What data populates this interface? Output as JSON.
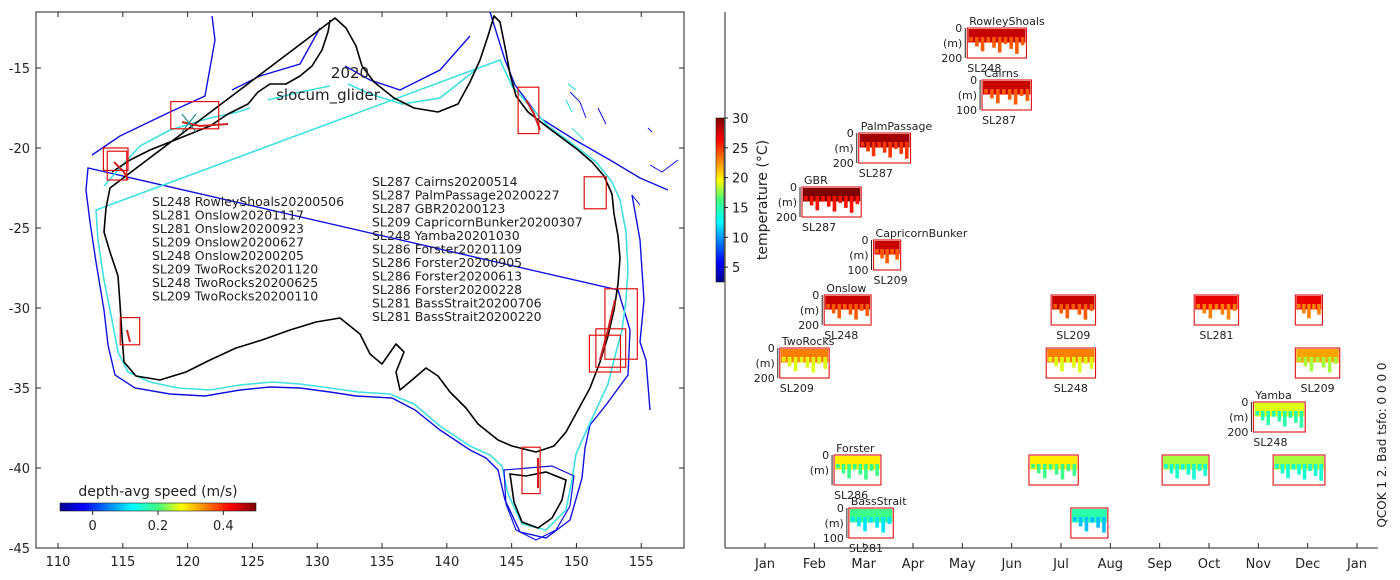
{
  "map": {
    "title_year": "2020",
    "title_platform": "slocum_glider",
    "xticks": [
      "110",
      "115",
      "120",
      "125",
      "130",
      "135",
      "140",
      "145",
      "150",
      "155"
    ],
    "xtick_values": [
      110,
      115,
      120,
      125,
      130,
      135,
      140,
      145,
      150,
      155
    ],
    "yticks": [
      "-15",
      "-20",
      "-25",
      "-30",
      "-35",
      "-40",
      "-45"
    ],
    "ytick_values": [
      -15,
      -20,
      -25,
      -30,
      -35,
      -40,
      -45
    ],
    "xlim": [
      108.3,
      158.3
    ],
    "ylim": [
      -45,
      -11.5
    ],
    "colorbar_label": "depth-avg speed (m/s)",
    "colorbar_ticks": [
      "0",
      "0.2",
      "0.4"
    ],
    "colorbar_tick_values": [
      0,
      0.2,
      0.4
    ],
    "colorbar_range": [
      -0.1,
      0.5
    ],
    "deployments_left": [
      "SL248 RowleyShoals20200506",
      "SL281 Onslow20201117",
      "SL281 Onslow20200923",
      "SL209 Onslow20200627",
      "SL248 Onslow20200205",
      "SL209 TwoRocks20201120",
      "SL248 TwoRocks20200625",
      "SL209 TwoRocks20200110"
    ],
    "deployments_right": [
      "SL287 Cairns20200514",
      "SL287 PalmPassage20200227",
      "SL287 GBR20200123",
      "SL209 CapricornBunker20200307",
      "SL248 Yamba20201030",
      "SL286 Forster20201109",
      "SL286 Forster20200905",
      "SL286 Forster20200613",
      "SL286 Forster20200228",
      "SL281 BassStrait20200706",
      "SL281 BassStrait20200220"
    ],
    "coast_color": "#000000",
    "isobath_200_color": "#40e0e0",
    "isobath_2000_color": "#1010e0",
    "box_color": "#dd1111",
    "site_boxes": [
      {
        "name": "RowleyShoals",
        "lon": [
          118.7,
          122.4
        ],
        "lat": [
          -17.1,
          -18.8
        ]
      },
      {
        "name": "Onslow",
        "lon": [
          113.5,
          115.4
        ],
        "lat": [
          -20.0,
          -21.4
        ]
      },
      {
        "name": "Onslow2",
        "lon": [
          113.8,
          115.3
        ],
        "lat": [
          -20.2,
          -22.0
        ]
      },
      {
        "name": "TwoRocks",
        "lon": [
          114.8,
          116.3
        ],
        "lat": [
          -30.6,
          -32.3
        ]
      },
      {
        "name": "Cairns",
        "lon": [
          145.5,
          147.1
        ],
        "lat": [
          -16.2,
          -19.1
        ]
      },
      {
        "name": "PalmPassage",
        "lon": [
          150.6,
          152.3
        ],
        "lat": [
          -21.8,
          -23.8
        ]
      },
      {
        "name": "Forster1",
        "lon": [
          152.2,
          154.7
        ],
        "lat": [
          -28.8,
          -33.2
        ]
      },
      {
        "name": "Forster2",
        "lon": [
          151.5,
          153.8
        ],
        "lat": [
          -31.3,
          -33.7
        ]
      },
      {
        "name": "Forster3",
        "lon": [
          151.0,
          153.4
        ],
        "lat": [
          -31.7,
          -34.0
        ]
      },
      {
        "name": "BassStrait",
        "lon": [
          145.8,
          147.2
        ],
        "lat": [
          -38.7,
          -41.6
        ]
      }
    ]
  },
  "chart_data": {
    "type": "timeline-heatmap",
    "xlabel": "",
    "xticks": [
      "Jan",
      "Feb",
      "Mar",
      "Apr",
      "May",
      "Jun",
      "Jul",
      "Aug",
      "Sep",
      "Oct",
      "Nov",
      "Dec",
      "Jan"
    ],
    "xtick_values": [
      0,
      1,
      2,
      3,
      4,
      5,
      6,
      7,
      8,
      9,
      10,
      11,
      12
    ],
    "colorbar_label": "temperature (°C)",
    "colorbar_ticks": [
      "5",
      "10",
      "15",
      "20",
      "25",
      "30"
    ],
    "colorbar_tick_values": [
      5,
      10,
      15,
      20,
      25,
      30
    ],
    "colorbar_range": [
      2.5,
      30
    ],
    "depth_unit": "(m)",
    "side_label": "QCOK 1  2. Bad tsfo: 0  0  0  0",
    "rows": [
      {
        "site": "RowleyShoals",
        "depth_max": "200",
        "glider": "SL248",
        "start": 4.1,
        "end": 5.3,
        "temp": 27
      },
      {
        "site": "Cairns",
        "depth_max": "100",
        "glider": "SL287",
        "start": 4.4,
        "end": 5.4,
        "temp": 27
      },
      {
        "site": "PalmPassage",
        "depth_max": "200",
        "glider": "SL287",
        "start": 1.9,
        "end": 2.95,
        "temp": 28
      },
      {
        "site": "GBR",
        "depth_max": "200",
        "glider": "SL287",
        "start": 0.75,
        "end": 1.95,
        "temp": 29
      },
      {
        "site": "CapricornBunker",
        "depth_max": "100",
        "glider": "SL209",
        "start": 2.2,
        "end": 2.75,
        "temp": 27
      },
      {
        "site": "Onslow",
        "depth_max": "200",
        "glider": "SL248",
        "extra": [
          "SL209",
          "SL281"
        ],
        "start": 1.2,
        "end": 2.15,
        "temp": 27
      },
      {
        "site": "TwoRocks",
        "depth_max": "200",
        "glider": "SL209",
        "extra": [
          "SL248",
          "SL209"
        ],
        "start": 0.3,
        "end": 1.3,
        "temp": 22
      },
      {
        "site": "Yamba",
        "depth_max": "200",
        "glider": "SL248",
        "start": 9.9,
        "end": 10.95,
        "temp": 18
      },
      {
        "site": "Forster",
        "depth_max": "",
        "glider": "SL286",
        "start": 1.4,
        "end": 2.35,
        "temp": 19
      },
      {
        "site": "BassStrait",
        "depth_max": "100",
        "glider": "SL281",
        "start": 1.7,
        "end": 2.6,
        "temp": 15
      }
    ],
    "extra_segments": [
      {
        "row": "Onslow",
        "start": 5.8,
        "end": 6.7,
        "temp": 27
      },
      {
        "row": "Onslow",
        "start": 8.7,
        "end": 9.6,
        "temp": 26
      },
      {
        "row": "Onslow",
        "start": 10.75,
        "end": 11.3,
        "temp": 26
      },
      {
        "row": "TwoRocks",
        "start": 5.7,
        "end": 6.7,
        "temp": 22
      },
      {
        "row": "TwoRocks",
        "start": 10.75,
        "end": 11.65,
        "temp": 21
      },
      {
        "row": "Forster",
        "start": 5.35,
        "end": 6.35,
        "temp": 19
      },
      {
        "row": "Forster",
        "start": 8.05,
        "end": 9.0,
        "temp": 17
      },
      {
        "row": "Forster",
        "start": 10.3,
        "end": 11.35,
        "temp": 17
      },
      {
        "row": "BassStrait",
        "start": 6.2,
        "end": 6.95,
        "temp": 14
      }
    ]
  }
}
